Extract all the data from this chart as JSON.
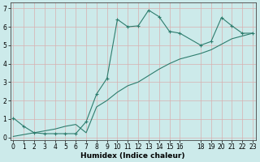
{
  "xlabel": "Humidex (Indice chaleur)",
  "bg_color": "#cceaea",
  "grid_color": "#d8b0b0",
  "line_color": "#2e7d6e",
  "curve1_x": [
    0,
    1,
    2,
    3,
    4,
    5,
    6,
    7,
    8,
    9,
    10,
    11,
    12,
    13,
    14,
    15,
    16,
    18,
    19,
    20,
    21,
    22,
    23
  ],
  "curve1_y": [
    1.05,
    0.6,
    0.25,
    0.2,
    0.2,
    0.2,
    0.2,
    0.85,
    2.35,
    3.2,
    6.4,
    6.0,
    6.05,
    6.9,
    6.55,
    5.75,
    5.65,
    5.0,
    5.2,
    6.5,
    6.05,
    5.65,
    5.65
  ],
  "curve2_x": [
    0,
    1,
    2,
    3,
    4,
    5,
    6,
    7,
    8,
    9,
    10,
    11,
    12,
    13,
    14,
    15,
    16,
    18,
    19,
    20,
    21,
    22,
    23
  ],
  "curve2_y": [
    0.05,
    0.15,
    0.25,
    0.35,
    0.45,
    0.6,
    0.7,
    0.25,
    1.65,
    2.0,
    2.45,
    2.8,
    3.0,
    3.35,
    3.7,
    4.0,
    4.25,
    4.55,
    4.75,
    5.05,
    5.35,
    5.5,
    5.65
  ],
  "xlim": [
    0,
    23
  ],
  "ylim": [
    0,
    7
  ],
  "xticks": [
    0,
    1,
    2,
    3,
    4,
    5,
    6,
    7,
    8,
    9,
    10,
    11,
    12,
    13,
    14,
    15,
    16,
    18,
    19,
    20,
    21,
    22,
    23
  ],
  "yticks": [
    0,
    1,
    2,
    3,
    4,
    5,
    6,
    7
  ],
  "label_fontsize": 6.5,
  "tick_fontsize": 5.5
}
